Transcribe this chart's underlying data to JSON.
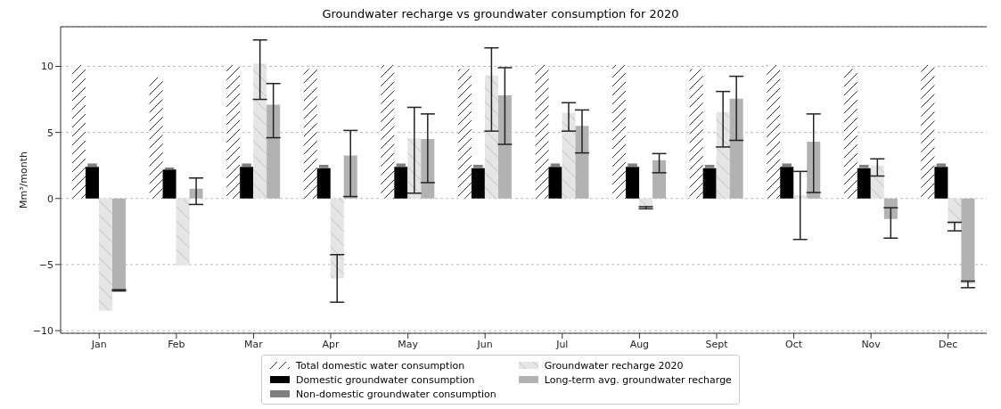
{
  "chart_data": {
    "type": "bar",
    "title": "Groundwater recharge vs groundwater consumption for 2020",
    "ylabel": "Mm³/month",
    "categories": [
      "Jan",
      "Feb",
      "Mar",
      "Apr",
      "May",
      "Jun",
      "Jul",
      "Aug",
      "Sept",
      "Oct",
      "Nov",
      "Dec"
    ],
    "series": [
      {
        "name": "Total domestic water consumption",
        "color": "#ffffff",
        "values": [
          10.1,
          9.15,
          10.1,
          9.8,
          10.1,
          9.8,
          10.1,
          10.1,
          9.8,
          10.1,
          9.8,
          10.1
        ]
      },
      {
        "name": "Domestic groundwater consumption",
        "color": "#000000",
        "values": [
          2.4,
          2.2,
          2.4,
          2.3,
          2.4,
          2.3,
          2.4,
          2.4,
          2.3,
          2.4,
          2.3,
          2.4
        ]
      },
      {
        "name": "Non-domestic groundwater consumption",
        "color": "#7f7f7f",
        "base": [
          2.4,
          2.2,
          2.4,
          2.3,
          2.4,
          2.3,
          2.4,
          2.4,
          2.3,
          2.4,
          2.3,
          2.4
        ],
        "values": [
          0.25,
          0.15,
          0.25,
          0.25,
          0.25,
          0.25,
          0.25,
          0.25,
          0.25,
          0.25,
          0.25,
          0.25
        ]
      },
      {
        "name": "Groundwater recharge 2020",
        "color": "#e5e5e5",
        "values": [
          -8.5,
          -5.05,
          10.2,
          -6.05,
          4.55,
          9.3,
          6.5,
          -0.7,
          6.55,
          0.25,
          2.5,
          -1.95
        ],
        "errors": [
          null,
          null,
          [
            7.5,
            12.0
          ],
          [
            -7.85,
            -4.25
          ],
          [
            0.4,
            6.9
          ],
          [
            5.1,
            11.4
          ],
          [
            5.1,
            7.25
          ],
          0.08,
          [
            3.9,
            8.1
          ],
          [
            -3.1,
            2.05
          ],
          [
            1.7,
            3.0
          ],
          [
            -2.45,
            -1.8
          ]
        ]
      },
      {
        "name": "Long-term avg. groundwater recharge",
        "color": "#b2b2b2",
        "values": [
          -6.95,
          0.75,
          7.1,
          3.25,
          4.5,
          7.8,
          5.5,
          2.9,
          7.55,
          4.3,
          -1.55,
          -6.4
        ],
        "errors": [
          [
            -7.0,
            -6.9
          ],
          [
            -0.45,
            1.55
          ],
          [
            4.6,
            8.7
          ],
          [
            0.15,
            5.15
          ],
          [
            1.2,
            6.4
          ],
          [
            4.1,
            9.9
          ],
          [
            3.45,
            6.7
          ],
          [
            1.95,
            3.4
          ],
          [
            4.4,
            9.25
          ],
          [
            0.45,
            6.4
          ],
          [
            -3.0,
            -0.7
          ],
          [
            -6.75,
            -6.25
          ]
        ]
      }
    ],
    "ylim": [
      -10.2,
      13
    ],
    "yticks": [
      -10,
      -5,
      0,
      5,
      10
    ],
    "grid": "y",
    "legend": "bottom"
  }
}
